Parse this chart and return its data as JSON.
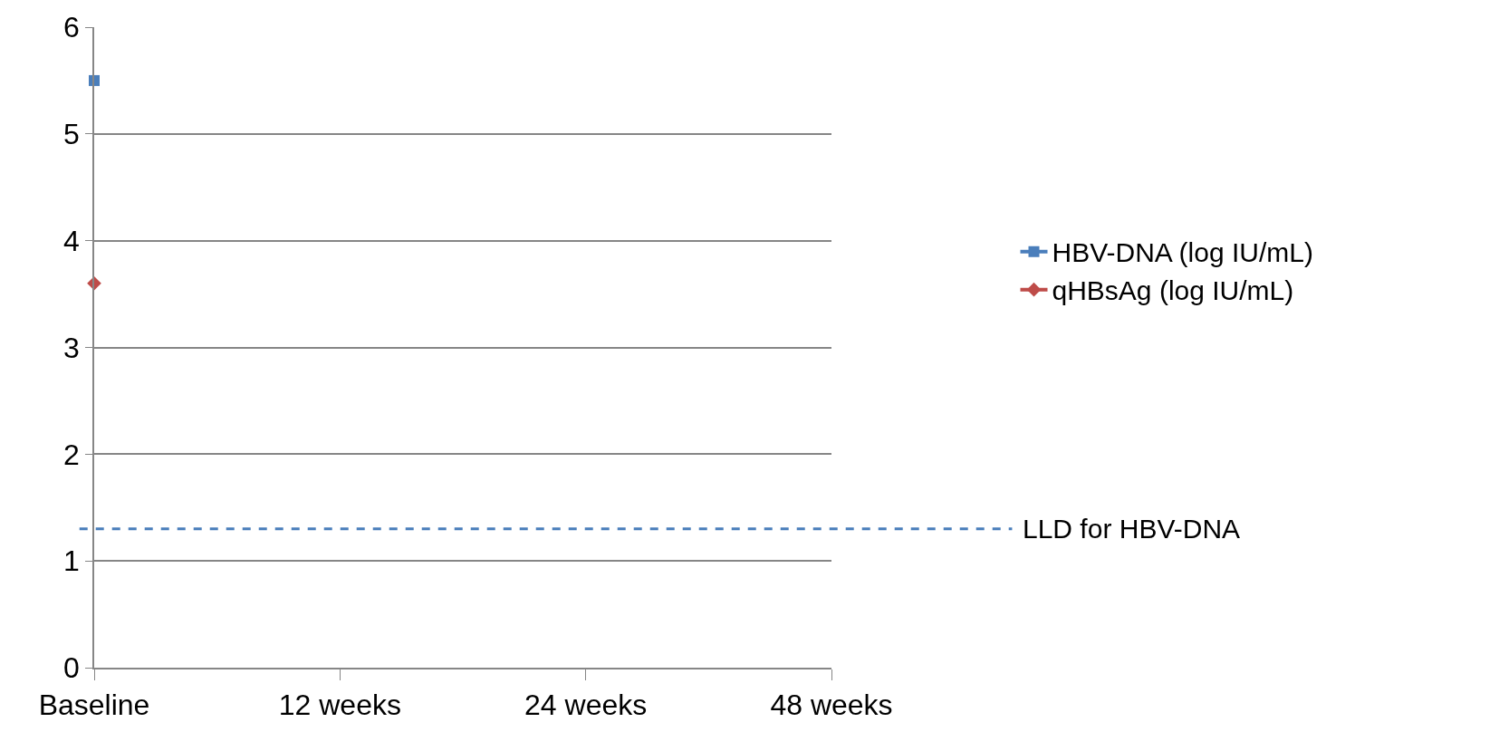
{
  "chart_data": {
    "type": "line",
    "categories": [
      "Baseline",
      "12 weeks",
      "24 weeks",
      "48 weeks"
    ],
    "series": [
      {
        "name": "HBV-DNA (log IU/mL)",
        "color": "#4a7ebb",
        "marker": "square",
        "values": [
          5.5,
          null,
          null,
          null
        ]
      },
      {
        "name": "qHBsAg (log IU/mL)",
        "color": "#be4b48",
        "marker": "diamond",
        "values": [
          3.6,
          null,
          null,
          null
        ]
      }
    ],
    "ylim": [
      0,
      6
    ],
    "yticks": [
      0,
      1,
      2,
      3,
      4,
      5,
      6
    ],
    "grid": "y",
    "legend": "right",
    "line_style": "solid",
    "ref_lines": [
      {
        "axis": "y",
        "value": 1.3,
        "label": "LLD for HBV-DNA",
        "color": "#4a7ebb",
        "line_style": "dashed"
      }
    ]
  }
}
